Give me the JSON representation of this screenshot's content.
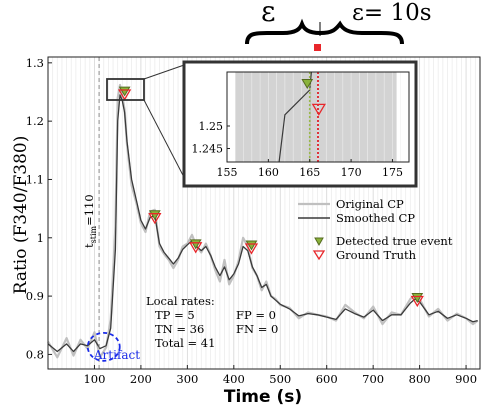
{
  "chart_data": {
    "type": "line",
    "xlabel": "Time (s)",
    "ylabel": "Ratio (F340/F380)",
    "xlim": [
      0,
      930
    ],
    "ylim": [
      0.775,
      1.31
    ],
    "x_ticks": [
      100,
      200,
      300,
      400,
      500,
      600,
      700,
      800,
      900
    ],
    "y_ticks": [
      0.8,
      0.9,
      1,
      1.1,
      1.2,
      1.3
    ],
    "y_tick_labels": [
      "0.8",
      "0.9",
      "1",
      "1.1",
      "1.2",
      "1.3"
    ],
    "grid": "vertical",
    "legend_position": "right",
    "series": [
      {
        "name": "Original CP",
        "color": "#c0c0c0",
        "x": [
          0,
          20,
          40,
          55,
          70,
          85,
          100,
          112,
          125,
          135,
          145,
          150,
          155,
          160,
          165,
          170,
          180,
          190,
          200,
          210,
          220,
          230,
          240,
          250,
          260,
          270,
          280,
          290,
          300,
          310,
          320,
          330,
          340,
          350,
          360,
          370,
          380,
          390,
          400,
          410,
          420,
          430,
          440,
          450,
          460,
          470,
          480,
          490,
          500,
          520,
          540,
          560,
          580,
          600,
          620,
          640,
          660,
          680,
          700,
          720,
          740,
          760,
          780,
          790,
          800,
          820,
          840,
          860,
          880,
          900,
          915,
          925
        ],
        "y": [
          0.822,
          0.795,
          0.828,
          0.798,
          0.825,
          0.81,
          0.838,
          0.795,
          0.812,
          0.86,
          1.02,
          1.24,
          1.262,
          1.243,
          1.22,
          1.16,
          1.09,
          1.06,
          1.025,
          1.01,
          1.045,
          1.048,
          0.985,
          0.972,
          0.962,
          0.948,
          0.962,
          0.985,
          0.99,
          1.005,
          0.985,
          0.975,
          0.99,
          0.97,
          0.945,
          0.925,
          0.962,
          0.92,
          0.935,
          0.96,
          1.0,
          0.985,
          0.948,
          0.935,
          0.91,
          0.925,
          0.9,
          0.895,
          0.885,
          0.88,
          0.862,
          0.872,
          0.868,
          0.865,
          0.858,
          0.885,
          0.872,
          0.862,
          0.882,
          0.852,
          0.872,
          0.868,
          0.895,
          0.902,
          0.895,
          0.865,
          0.878,
          0.858,
          0.87,
          0.862,
          0.852,
          0.858
        ]
      },
      {
        "name": "Smoothed CP",
        "color": "#3a3a3a",
        "x": [
          0,
          20,
          40,
          55,
          70,
          85,
          100,
          112,
          125,
          135,
          145,
          150,
          155,
          160,
          165,
          170,
          180,
          190,
          200,
          210,
          220,
          230,
          240,
          250,
          260,
          270,
          280,
          290,
          300,
          310,
          320,
          330,
          340,
          350,
          360,
          370,
          380,
          390,
          400,
          410,
          420,
          430,
          440,
          450,
          460,
          470,
          480,
          490,
          500,
          520,
          540,
          560,
          580,
          600,
          620,
          640,
          660,
          680,
          700,
          720,
          740,
          760,
          780,
          790,
          800,
          820,
          840,
          860,
          880,
          900,
          915,
          925
        ],
        "y": [
          0.818,
          0.805,
          0.818,
          0.805,
          0.818,
          0.815,
          0.825,
          0.81,
          0.815,
          0.845,
          0.98,
          1.2,
          1.245,
          1.235,
          1.215,
          1.165,
          1.1,
          1.065,
          1.03,
          1.015,
          1.035,
          1.038,
          0.99,
          0.975,
          0.965,
          0.955,
          0.965,
          0.98,
          0.988,
          0.995,
          0.985,
          0.978,
          0.985,
          0.97,
          0.95,
          0.935,
          0.95,
          0.928,
          0.938,
          0.955,
          0.985,
          0.978,
          0.95,
          0.935,
          0.915,
          0.92,
          0.9,
          0.893,
          0.886,
          0.878,
          0.866,
          0.87,
          0.868,
          0.864,
          0.86,
          0.878,
          0.87,
          0.864,
          0.876,
          0.858,
          0.868,
          0.868,
          0.888,
          0.895,
          0.89,
          0.868,
          0.874,
          0.862,
          0.868,
          0.862,
          0.856,
          0.858
        ]
      }
    ],
    "events": {
      "detected": {
        "name": "Detected true event",
        "color": "#8ab33a",
        "x": [
          165,
          230,
          318,
          438,
          795
        ],
        "y": [
          1.252,
          1.04,
          0.99,
          0.988,
          0.898
        ]
      },
      "ground_truth": {
        "name": "Ground Truth",
        "color": "#e8262a",
        "x": [
          165,
          230,
          318,
          438,
          795
        ],
        "y": [
          1.248,
          1.036,
          0.986,
          0.984,
          0.894
        ]
      }
    },
    "stim_line": {
      "x": 110,
      "label_main": "t",
      "label_sub": "stim",
      "label_suffix": "=110"
    },
    "artifact": {
      "x": 120,
      "y": 0.813,
      "label": "Artifact",
      "color": "#1a2be8"
    },
    "local_rates": {
      "title": "Local rates:",
      "rows": [
        [
          "TP = 5",
          "FP = 0"
        ],
        [
          "TN = 36",
          "FN = 0"
        ],
        [
          "Total = 41",
          ""
        ]
      ]
    },
    "inset": {
      "xlim": [
        155,
        177
      ],
      "ylim": [
        1.242,
        1.262
      ],
      "x_ticks": [
        155,
        160,
        165,
        170,
        175
      ],
      "y_ticks": [
        1.245,
        1.25
      ],
      "shaded_range": [
        156,
        175.5
      ],
      "true_event_x": 165,
      "ground_truth_x": 166,
      "smoothed_trace": {
        "x": [
          161.3,
          162,
          165,
          165.2
        ],
        "y": [
          1.242,
          1.2525,
          1.258,
          1.262
        ]
      },
      "original_trace": {
        "x": [
          165,
          165.1
        ],
        "y": [
          1.242,
          1.262
        ]
      },
      "detected_marker": {
        "x": 164.7,
        "y": 1.2595
      },
      "ground_truth_marker": {
        "x": 166.1,
        "y": 1.2538
      }
    },
    "annotations": {
      "epsilon_left": "ε",
      "epsilon_right": "ε= 10s"
    }
  }
}
